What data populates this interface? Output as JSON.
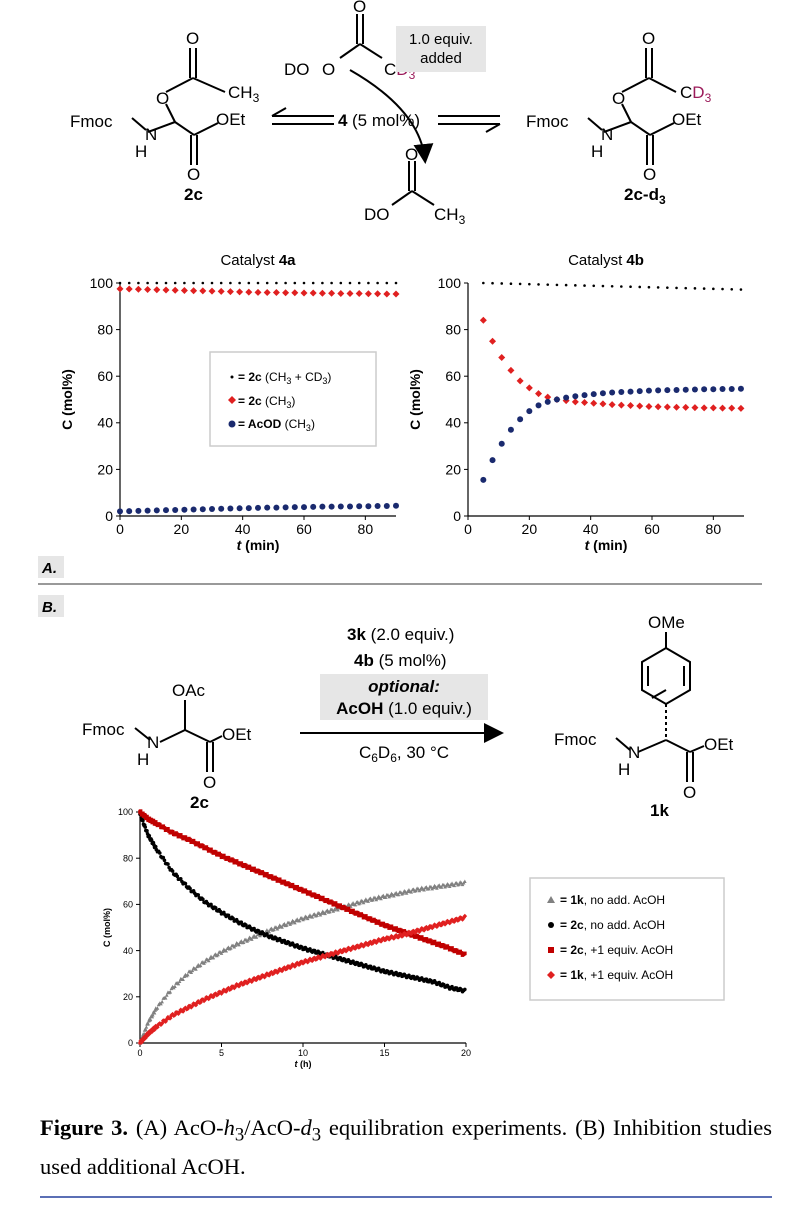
{
  "schemeA": {
    "reactant_label": "2c",
    "product_label": "2c-d3",
    "fmoc": "Fmoc",
    "nh": "N",
    "h": "H",
    "oet": "OEt",
    "o": "O",
    "ch3": "CH3",
    "cd3": "CD3",
    "do_label": "DO",
    "catalyst": "4",
    "catalyst_loading": "(5 mol%)",
    "added_line1": "1.0 equiv.",
    "added_line2": "added"
  },
  "panelA_label": "A.",
  "panelB_label": "B.",
  "schemeB": {
    "reactant_label": "2c",
    "product_label": "1k",
    "oac": "OAc",
    "ome": "OMe",
    "reagent1_bold": "3k",
    "reagent1_rest": "(2.0 equiv.)",
    "reagent2_bold": "4b",
    "reagent2_rest": "(5 mol%)",
    "optional": "optional:",
    "acoh_bold": "AcOH",
    "acoh_rest": "(1.0 equiv.)",
    "conditions": "C6D6, 30 °C"
  },
  "colors": {
    "black": "#000000",
    "red": "#e02020",
    "navy": "#1a2a6e",
    "gray": "#808080",
    "dark_red": "#c00000",
    "rule": "#5b6fb5"
  },
  "chart_data": [
    {
      "type": "scatter",
      "title": "Catalyst 4a",
      "xlabel": "t (min)",
      "ylabel": "C (mol%)",
      "xlim": [
        0,
        90
      ],
      "ylim": [
        0,
        100
      ],
      "xticks": [
        0,
        20,
        40,
        60,
        80
      ],
      "yticks": [
        0,
        20,
        40,
        60,
        80,
        100
      ],
      "legend_position": "center-right",
      "series": [
        {
          "name": "= 2c (CH3 + CD3)",
          "marker": "dot-small",
          "color": "#000000",
          "x": [
            0,
            3,
            6,
            9,
            12,
            15,
            18,
            21,
            24,
            27,
            30,
            33,
            36,
            39,
            42,
            45,
            48,
            51,
            54,
            57,
            60,
            63,
            66,
            69,
            72,
            75,
            78,
            81,
            84,
            87,
            90
          ],
          "y": [
            100,
            100,
            100,
            100,
            100,
            100,
            100,
            100,
            100,
            100,
            100,
            100,
            100,
            100,
            100,
            100,
            100,
            100,
            100,
            100,
            100,
            100,
            100,
            100,
            100,
            100,
            100,
            100,
            100,
            100,
            100
          ]
        },
        {
          "name": "= 2c (CH3)",
          "marker": "diamond",
          "color": "#e02020",
          "x": [
            0,
            3,
            6,
            9,
            12,
            15,
            18,
            21,
            24,
            27,
            30,
            33,
            36,
            39,
            42,
            45,
            48,
            51,
            54,
            57,
            60,
            63,
            66,
            69,
            72,
            75,
            78,
            81,
            84,
            87,
            90
          ],
          "y": [
            97.5,
            97.4,
            97.3,
            97.2,
            97.1,
            97,
            96.9,
            96.8,
            96.7,
            96.6,
            96.5,
            96.4,
            96.3,
            96.2,
            96.1,
            96,
            95.9,
            95.9,
            95.8,
            95.8,
            95.7,
            95.7,
            95.6,
            95.6,
            95.5,
            95.5,
            95.5,
            95.4,
            95.4,
            95.3,
            95.3
          ]
        },
        {
          "name": "= AcOD (CH3)",
          "marker": "circle",
          "color": "#1a2a6e",
          "x": [
            0,
            3,
            6,
            9,
            12,
            15,
            18,
            21,
            24,
            27,
            30,
            33,
            36,
            39,
            42,
            45,
            48,
            51,
            54,
            57,
            60,
            63,
            66,
            69,
            72,
            75,
            78,
            81,
            84,
            87,
            90
          ],
          "y": [
            2,
            2.1,
            2.2,
            2.3,
            2.4,
            2.5,
            2.6,
            2.7,
            2.8,
            2.9,
            3,
            3.1,
            3.2,
            3.3,
            3.4,
            3.5,
            3.6,
            3.6,
            3.7,
            3.8,
            3.8,
            3.9,
            4,
            4,
            4.1,
            4.1,
            4.2,
            4.2,
            4.3,
            4.3,
            4.4
          ]
        }
      ]
    },
    {
      "type": "scatter",
      "title": "Catalyst 4b",
      "xlabel": "t (min)",
      "ylabel": "C (mol%)",
      "xlim": [
        0,
        90
      ],
      "ylim": [
        0,
        100
      ],
      "xticks": [
        0,
        20,
        40,
        60,
        80
      ],
      "yticks": [
        0,
        20,
        40,
        60,
        80,
        100
      ],
      "series": [
        {
          "name": "2c (CH3 + CD3)",
          "marker": "dot-small",
          "color": "#000000",
          "x": [
            5,
            8,
            11,
            14,
            17,
            20,
            23,
            26,
            29,
            32,
            35,
            38,
            41,
            44,
            47,
            50,
            53,
            56,
            59,
            62,
            65,
            68,
            71,
            74,
            77,
            80,
            83,
            86,
            89
          ],
          "y": [
            100,
            99.9,
            99.8,
            99.7,
            99.6,
            99.5,
            99.4,
            99.3,
            99.2,
            99.1,
            99,
            98.9,
            98.8,
            98.7,
            98.6,
            98.5,
            98.4,
            98.3,
            98.2,
            98.1,
            98,
            97.9,
            97.8,
            97.7,
            97.6,
            97.5,
            97.4,
            97.3,
            97.2
          ]
        },
        {
          "name": "2c (CH3)",
          "marker": "diamond",
          "color": "#e02020",
          "x": [
            5,
            8,
            11,
            14,
            17,
            20,
            23,
            26,
            29,
            32,
            35,
            38,
            41,
            44,
            47,
            50,
            53,
            56,
            59,
            62,
            65,
            68,
            71,
            74,
            77,
            80,
            83,
            86,
            89
          ],
          "y": [
            84,
            75,
            68,
            62.5,
            58,
            55,
            52.5,
            51,
            50,
            49.5,
            49,
            48.7,
            48.4,
            48.1,
            47.8,
            47.6,
            47.4,
            47.2,
            47,
            46.9,
            46.8,
            46.7,
            46.6,
            46.5,
            46.4,
            46.4,
            46.3,
            46.3,
            46.2
          ]
        },
        {
          "name": "AcOD (CH3)",
          "marker": "circle",
          "color": "#1a2a6e",
          "x": [
            5,
            8,
            11,
            14,
            17,
            20,
            23,
            26,
            29,
            32,
            35,
            38,
            41,
            44,
            47,
            50,
            53,
            56,
            59,
            62,
            65,
            68,
            71,
            74,
            77,
            80,
            83,
            86,
            89
          ],
          "y": [
            15.5,
            24,
            31,
            37,
            41.5,
            45,
            47.5,
            49,
            50,
            50.8,
            51.4,
            51.9,
            52.3,
            52.7,
            53,
            53.2,
            53.4,
            53.6,
            53.8,
            53.9,
            54,
            54.1,
            54.2,
            54.3,
            54.4,
            54.4,
            54.5,
            54.5,
            54.6
          ]
        }
      ]
    },
    {
      "type": "line",
      "title": "",
      "xlabel": "t (h)",
      "ylabel": "C (mol%)",
      "xlim": [
        0,
        20
      ],
      "ylim": [
        0,
        100
      ],
      "xticks": [
        0,
        5,
        10,
        15,
        20
      ],
      "yticks": [
        0,
        20,
        40,
        60,
        80,
        100
      ],
      "legend_position": "right",
      "series": [
        {
          "name": "= 1k, no add. AcOH",
          "marker": "triangle",
          "color": "#808080",
          "x": [
            0,
            0.5,
            1,
            2,
            3,
            4,
            5,
            6,
            7,
            8,
            9,
            10,
            11,
            12,
            13,
            14,
            15,
            16,
            17,
            18,
            19,
            20
          ],
          "y": [
            0,
            9,
            15,
            24,
            30.5,
            35.5,
            39.5,
            43,
            46,
            49,
            51.5,
            54,
            56,
            58,
            60,
            62,
            63.5,
            65,
            66.5,
            67.5,
            68.5,
            69.5
          ]
        },
        {
          "name": "= 2c, no add. AcOH",
          "marker": "circle",
          "color": "#000000",
          "x": [
            0,
            0.5,
            1,
            2,
            3,
            4,
            5,
            6,
            7,
            8,
            9,
            10,
            11,
            12,
            13,
            14,
            15,
            16,
            17,
            18,
            19,
            20
          ],
          "y": [
            99,
            90,
            84,
            74,
            67,
            61,
            56.5,
            52.5,
            49,
            46,
            43.5,
            41,
            39,
            37,
            35,
            33,
            31,
            29.5,
            28,
            26.5,
            24,
            22.5
          ]
        },
        {
          "name": "= 2c, +1 equiv. AcOH",
          "marker": "square",
          "color": "#c00000",
          "x": [
            0,
            0.5,
            1,
            2,
            3,
            4,
            5,
            6,
            7,
            8,
            9,
            10,
            11,
            12,
            13,
            14,
            15,
            16,
            17,
            18,
            19,
            20
          ],
          "y": [
            100,
            97,
            95,
            91,
            88,
            84.5,
            81,
            78,
            75,
            72,
            69,
            66,
            63,
            60,
            57,
            54,
            51,
            48.5,
            46,
            43.5,
            41,
            38
          ]
        },
        {
          "name": "= 1k, +1 equiv. AcOH",
          "marker": "diamond",
          "color": "#e02020",
          "x": [
            0,
            0.5,
            1,
            2,
            3,
            4,
            5,
            6,
            7,
            8,
            9,
            10,
            11,
            12,
            13,
            14,
            15,
            16,
            17,
            18,
            19,
            20
          ],
          "y": [
            0,
            4,
            7,
            12,
            15.5,
            19,
            22,
            25,
            27.5,
            30,
            32.5,
            35,
            37,
            39,
            41,
            43,
            45,
            46.5,
            48.5,
            50.5,
            52.5,
            54.5
          ]
        }
      ]
    }
  ],
  "caption": {
    "label": "Figure 3.",
    "text": " (A) AcO-h3/AcO-d3 equilibration experiments. (B) Inhibition studies used additional AcOH."
  }
}
